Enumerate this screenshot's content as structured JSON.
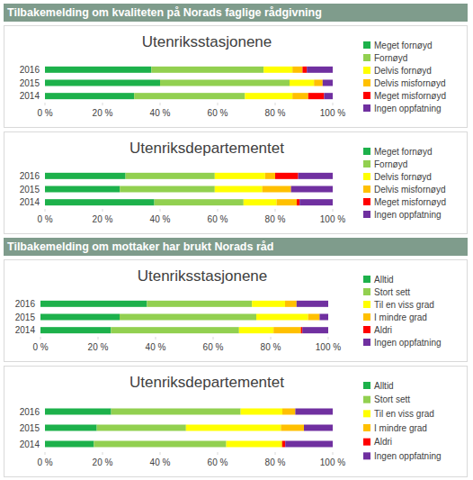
{
  "sections": [
    "Tilbakemelding om kvaliteten på Norads faglige rådgivning",
    "Tilbakemelding om mottaker har brukt Norads råd"
  ],
  "chart_data": [
    {
      "type": "bar",
      "title": "Utenriksstasjonene",
      "orientation": "horizontal",
      "stacked": true,
      "legend": "right",
      "categories": [
        "2016",
        "2015",
        "2014"
      ],
      "xlim": [
        0,
        100
      ],
      "xticks": [
        {
          "value": 0,
          "label": "0 %"
        },
        {
          "value": 20,
          "label": "20 %"
        },
        {
          "value": 40,
          "label": "40 %"
        },
        {
          "value": 60,
          "label": "60 %"
        },
        {
          "value": 80,
          "label": "80 %"
        },
        {
          "value": 100,
          "label": "100 %"
        }
      ],
      "series": [
        {
          "name": "Meget fornøyd",
          "color": "#1db14b",
          "values": [
            37,
            40,
            31
          ]
        },
        {
          "name": "Fornøyd",
          "color": "#92d050",
          "values": [
            39,
            45,
            38.5
          ]
        },
        {
          "name": "Delvis fornøyd",
          "color": "#ffff00",
          "values": [
            10,
            8.5,
            16.5
          ]
        },
        {
          "name": "Delvis misfornøyd",
          "color": "#ffc000",
          "values": [
            3.5,
            3,
            5.5
          ]
        },
        {
          "name": "Meget misfornøyd",
          "color": "#ff0000",
          "values": [
            1.5,
            0,
            5.5
          ]
        },
        {
          "name": "Ingen oppfatning",
          "color": "#7030a0",
          "values": [
            9,
            3.5,
            3
          ]
        }
      ]
    },
    {
      "type": "bar",
      "title": "Utenriksdepartementet",
      "orientation": "horizontal",
      "stacked": true,
      "legend": "right",
      "categories": [
        "2016",
        "2015",
        "2014"
      ],
      "xlim": [
        0,
        100
      ],
      "xticks": [
        {
          "value": 0,
          "label": "0 %"
        },
        {
          "value": 20,
          "label": "20 %"
        },
        {
          "value": 40,
          "label": "40 %"
        },
        {
          "value": 60,
          "label": "60 %"
        },
        {
          "value": 80,
          "label": "80 %"
        },
        {
          "value": 100,
          "label": "100 %"
        }
      ],
      "series": [
        {
          "name": "Meget fornøyd",
          "color": "#1db14b",
          "values": [
            28,
            26,
            38
          ]
        },
        {
          "name": "Fornøyd",
          "color": "#92d050",
          "values": [
            31,
            33,
            31
          ]
        },
        {
          "name": "Delvis fornøyd",
          "color": "#ffff00",
          "values": [
            17.5,
            16.5,
            11.5
          ]
        },
        {
          "name": "Delvis misfornøyd",
          "color": "#ffc000",
          "values": [
            3.5,
            10,
            7
          ]
        },
        {
          "name": "Meget misfornøyd",
          "color": "#ff0000",
          "values": [
            8,
            0,
            1
          ]
        },
        {
          "name": "Ingen oppfatning",
          "color": "#7030a0",
          "values": [
            12,
            14.5,
            11.5
          ]
        }
      ]
    },
    {
      "type": "bar",
      "title": "Utenriksstasjonene",
      "orientation": "horizontal",
      "stacked": true,
      "legend": "right",
      "categories": [
        "2016",
        "2015",
        "2014"
      ],
      "xlim": [
        0,
        100
      ],
      "xticks": [
        {
          "value": 0,
          "label": "0 %"
        },
        {
          "value": 20,
          "label": "20 %"
        },
        {
          "value": 40,
          "label": "40 %"
        },
        {
          "value": 60,
          "label": "60 %"
        },
        {
          "value": 80,
          "label": "80 %"
        },
        {
          "value": 100,
          "label": "100 %"
        }
      ],
      "series": [
        {
          "name": "Alltid",
          "color": "#1db14b",
          "values": [
            37,
            27.5,
            24.5
          ]
        },
        {
          "name": "Stort sett",
          "color": "#92d050",
          "values": [
            36.5,
            47.5,
            44.5
          ]
        },
        {
          "name": "Til en viss grad",
          "color": "#ffff00",
          "values": [
            11.5,
            18,
            12
          ]
        },
        {
          "name": "I mindre grad",
          "color": "#ffc000",
          "values": [
            4,
            4,
            9.5
          ]
        },
        {
          "name": "Aldri",
          "color": "#ff0000",
          "values": [
            0,
            0,
            0.5
          ]
        },
        {
          "name": "Ingen oppfatning",
          "color": "#7030a0",
          "values": [
            11,
            3,
            9
          ]
        }
      ]
    },
    {
      "type": "bar",
      "title": "Utenriksdepartementet",
      "orientation": "horizontal",
      "stacked": true,
      "legend": "right",
      "categories": [
        "2016",
        "2015",
        "2014"
      ],
      "xlim": [
        0,
        100
      ],
      "xticks": [
        {
          "value": 0,
          "label": "0 %"
        },
        {
          "value": 20,
          "label": "20 %"
        },
        {
          "value": 40,
          "label": "40 %"
        },
        {
          "value": 60,
          "label": "60 %"
        },
        {
          "value": 80,
          "label": "80 %"
        },
        {
          "value": 100,
          "label": "100 %"
        }
      ],
      "series": [
        {
          "name": "Alltid",
          "color": "#1db14b",
          "values": [
            23,
            18,
            17
          ]
        },
        {
          "name": "Stort sett",
          "color": "#92d050",
          "values": [
            45,
            31,
            46
          ]
        },
        {
          "name": "Til en viss grad",
          "color": "#ffff00",
          "values": [
            14.5,
            33,
            19
          ]
        },
        {
          "name": "I mindre grad",
          "color": "#ffc000",
          "values": [
            4.5,
            8,
            0.5
          ]
        },
        {
          "name": "Aldri",
          "color": "#ff0000",
          "values": [
            0,
            0,
            1
          ]
        },
        {
          "name": "Ingen oppfatning",
          "color": "#7030a0",
          "values": [
            13,
            10,
            16.5
          ]
        }
      ]
    }
  ]
}
